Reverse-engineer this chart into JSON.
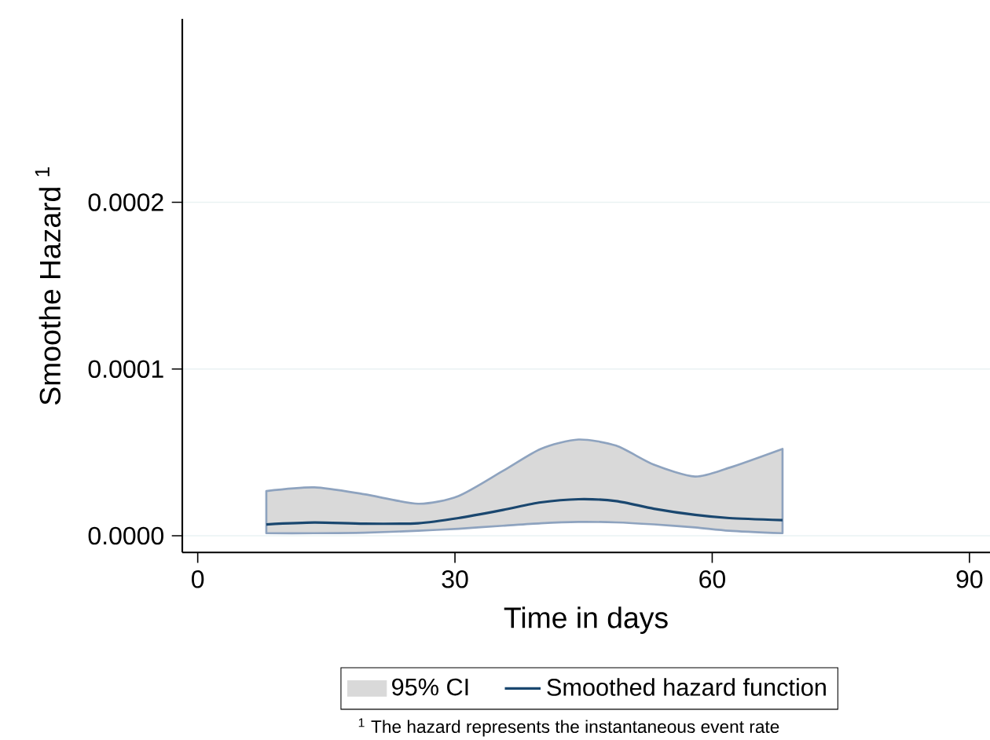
{
  "chart_data": {
    "type": "line",
    "xlabel": "Time in days",
    "ylabel": "Smoothe Hazard $^{1}$",
    "annotations": [
      "95% CI",
      "$^{1}$ The hazard represents the instantaneous event rate"
    ],
    "x": [
      8,
      13.6,
      19.4,
      25.7,
      30.4,
      35.6,
      40,
      44.4,
      48.8,
      53.2,
      58,
      62,
      68.2
    ],
    "series": [
      {
        "name": "Smoothed hazard function",
        "color": "#1a476f",
        "values": [
          6.8e-06,
          7.9e-06,
          7.2e-06,
          7.5e-06,
          1.06e-05,
          1.55e-05,
          2e-05,
          2.19e-05,
          2.08e-05,
          1.62e-05,
          1.25e-05,
          1.06e-05,
          9.4e-06
        ],
        "lower": [
          1.5e-06,
          1.5e-06,
          1.8e-06,
          3e-06,
          4.2e-06,
          6e-06,
          7.5e-06,
          8.3e-06,
          8e-06,
          6.8e-06,
          5e-06,
          3e-06,
          1.5e-06
        ],
        "upper": [
          2.68e-05,
          2.9e-05,
          2.49e-05,
          1.92e-05,
          2.38e-05,
          3.89e-05,
          5.21e-05,
          5.77e-05,
          5.4e-05,
          4.26e-05,
          3.55e-05,
          4.08e-05,
          5.21e-05
        ]
      }
    ],
    "xlim": [
      -1.8,
      92.4
    ],
    "ylim": [
      -1e-05,
      0.00031
    ],
    "xticks": [
      0,
      30,
      60,
      90
    ],
    "yticks": [
      {
        "value": 0,
        "label": "0.0000"
      },
      {
        "value": 0.0001,
        "label": "0.0001"
      },
      {
        "value": 0.0002,
        "label": "0.0002"
      }
    ],
    "grid": "y",
    "legend": "bottom"
  }
}
